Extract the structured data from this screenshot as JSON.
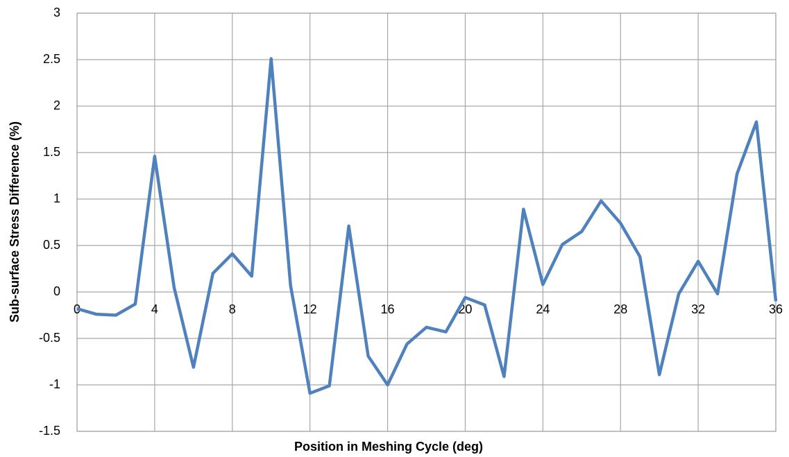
{
  "chart_data": {
    "type": "line",
    "x_label": "Position in Meshing Cycle (deg)",
    "y_label": "Sub-surface Stress Difference (%)",
    "x": [
      0,
      1,
      2,
      3,
      4,
      5,
      6,
      7,
      8,
      9,
      10,
      11,
      12,
      13,
      14,
      15,
      16,
      17,
      18,
      19,
      20,
      21,
      22,
      23,
      24,
      25,
      26,
      27,
      28,
      29,
      30,
      31,
      32,
      33,
      34,
      35,
      36
    ],
    "series": [
      {
        "color": "#4f81bd",
        "values": [
          -0.18,
          -0.24,
          -0.25,
          -0.13,
          1.46,
          0.05,
          -0.81,
          0.2,
          0.41,
          0.17,
          2.51,
          0.07,
          -1.09,
          -1.01,
          0.71,
          -0.69,
          -1.0,
          -0.56,
          -0.38,
          -0.43,
          -0.06,
          -0.14,
          -0.91,
          0.89,
          0.08,
          0.51,
          0.65,
          0.98,
          0.74,
          0.38,
          -0.89,
          -0.02,
          0.33,
          -0.02,
          1.27,
          1.83,
          -0.1
        ]
      }
    ],
    "xlim": [
      0,
      36
    ],
    "xticks": [
      0,
      4,
      8,
      12,
      16,
      20,
      24,
      28,
      32,
      36
    ],
    "ylim": [
      -1.5,
      3
    ],
    "yticks": [
      -1.5,
      -1,
      -0.5,
      0,
      0.5,
      1,
      1.5,
      2,
      2.5,
      3
    ],
    "grid": true
  }
}
